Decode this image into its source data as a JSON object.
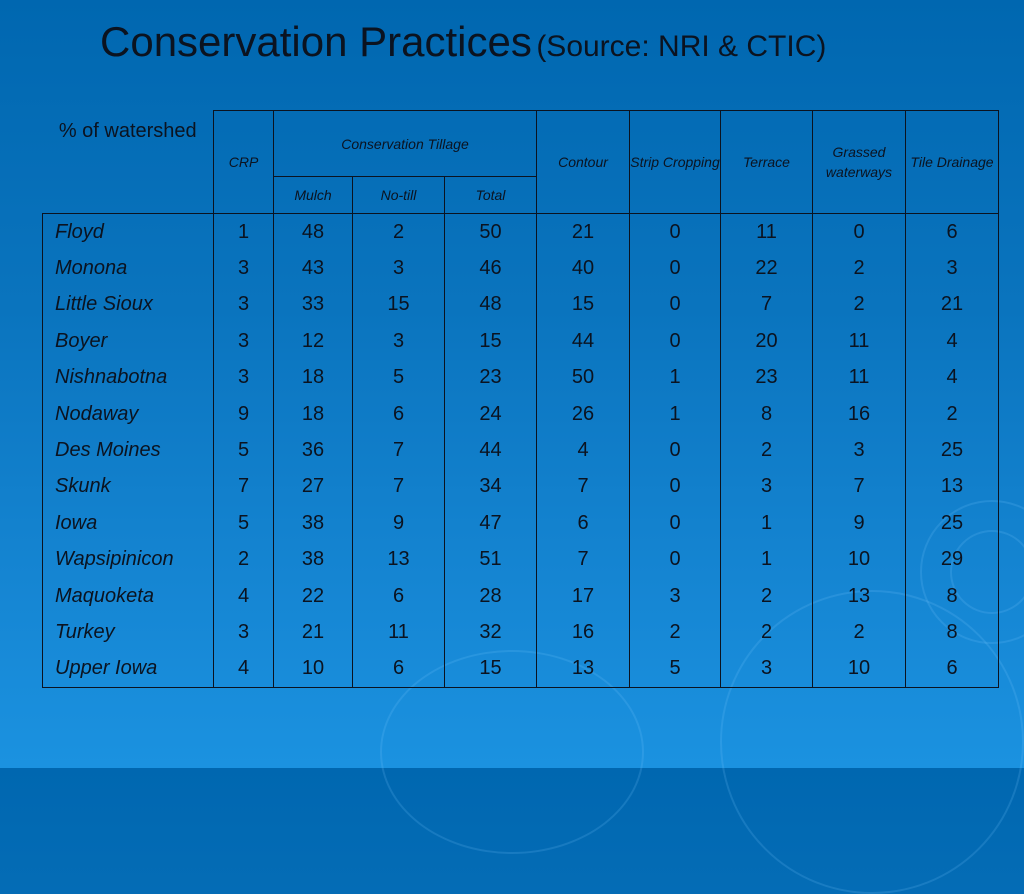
{
  "title": {
    "main": "Conservation Practices",
    "source": "(Source: NRI & CTIC)"
  },
  "table": {
    "corner_header": "% of watershed",
    "columns": {
      "crp": "CRP",
      "conservation_tillage": "Conservation Tillage",
      "mulch": "Mulch",
      "notill": "No-till",
      "total": "Total",
      "contour": "Contour",
      "strip_cropping": "Strip Cropping",
      "terrace": "Terrace",
      "grassed_waterways": "Grassed waterways",
      "tile_drainage": "Tile Drainage"
    },
    "rows": [
      {
        "name": "Floyd",
        "values": [
          1,
          48,
          2,
          50,
          21,
          0,
          11,
          0,
          6
        ]
      },
      {
        "name": "Monona",
        "values": [
          3,
          43,
          3,
          46,
          40,
          0,
          22,
          2,
          3
        ]
      },
      {
        "name": "Little Sioux",
        "values": [
          3,
          33,
          15,
          48,
          15,
          0,
          7,
          2,
          21
        ]
      },
      {
        "name": "Boyer",
        "values": [
          3,
          12,
          3,
          15,
          44,
          0,
          20,
          11,
          4
        ]
      },
      {
        "name": "Nishnabotna",
        "values": [
          3,
          18,
          5,
          23,
          50,
          1,
          23,
          11,
          4
        ]
      },
      {
        "name": "Nodaway",
        "values": [
          9,
          18,
          6,
          24,
          26,
          1,
          8,
          16,
          2
        ]
      },
      {
        "name": "Des Moines",
        "values": [
          5,
          36,
          7,
          44,
          4,
          0,
          2,
          3,
          25
        ]
      },
      {
        "name": "Skunk",
        "values": [
          7,
          27,
          7,
          34,
          7,
          0,
          3,
          7,
          13
        ]
      },
      {
        "name": "Iowa",
        "values": [
          5,
          38,
          9,
          47,
          6,
          0,
          1,
          9,
          25
        ]
      },
      {
        "name": "Wapsipinicon",
        "values": [
          2,
          38,
          13,
          51,
          7,
          0,
          1,
          10,
          29
        ]
      },
      {
        "name": "Maquoketa",
        "values": [
          4,
          22,
          6,
          28,
          17,
          3,
          2,
          13,
          8
        ]
      },
      {
        "name": "Turkey",
        "values": [
          3,
          21,
          11,
          32,
          16,
          2,
          2,
          2,
          8
        ]
      },
      {
        "name": "Upper Iowa",
        "values": [
          4,
          10,
          6,
          15,
          13,
          5,
          3,
          10,
          6
        ]
      }
    ]
  }
}
